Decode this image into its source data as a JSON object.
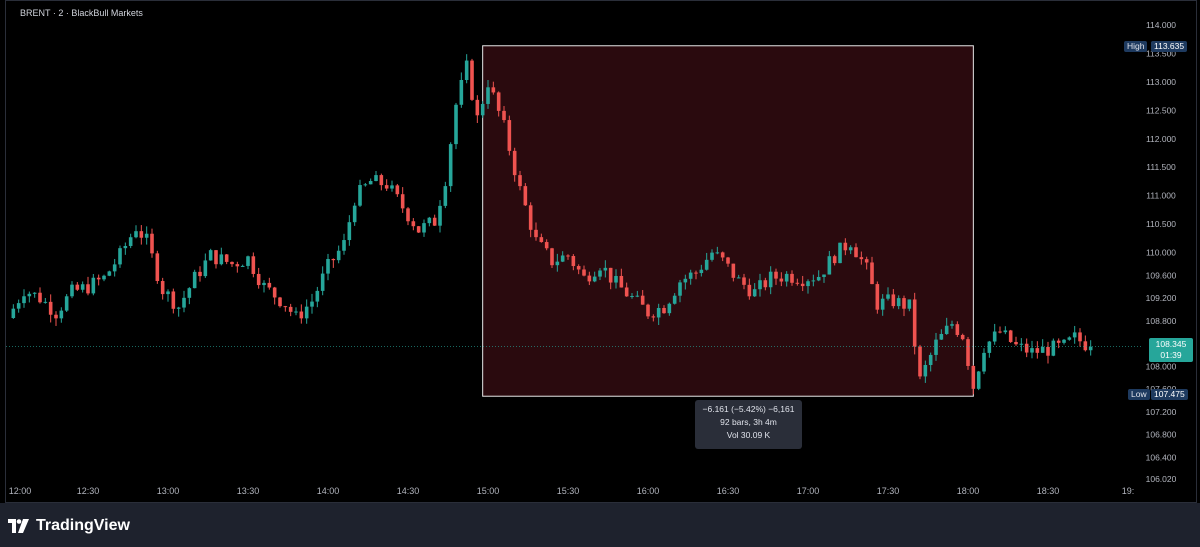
{
  "header": {
    "symbol_title": "BRENT · 2 · BlackBull Markets"
  },
  "footer": {
    "brand": "TradingView"
  },
  "price_tags": {
    "high_label": "High",
    "high_value": "113.635",
    "low_label": "Low",
    "low_value": "107.475",
    "current_value": "108.345",
    "countdown": "01:39"
  },
  "measure_tool": {
    "line1": "−6.161 (−5.42%) −6,161",
    "line2": "92 bars, 3h 4m",
    "line3": "Vol 30.09 K"
  },
  "colors": {
    "up": "#26a69a",
    "down": "#ef5350",
    "background": "#000000",
    "measure_fill": "#2a0a0e",
    "current_tag": "#26a69a",
    "high_low_tag": "#1e3a5f"
  },
  "chart_data": {
    "type": "candlestick",
    "title": "",
    "xlabel": "",
    "ylabel": "",
    "ylim": [
      106.02,
      114.1
    ],
    "y_ticks": [
      "114.000",
      "113.500",
      "113.000",
      "112.500",
      "112.000",
      "111.500",
      "111.000",
      "110.500",
      "110.000",
      "109.600",
      "109.200",
      "108.800",
      "108.000",
      "107.600",
      "107.200",
      "106.800",
      "106.400",
      "106.020"
    ],
    "x_ticks": [
      "12:00",
      "12:30",
      "13:00",
      "13:30",
      "14:00",
      "14:30",
      "15:00",
      "15:30",
      "16:00",
      "16:30",
      "17:00",
      "17:30",
      "18:00",
      "18:30",
      "19:"
    ],
    "time_range": [
      "12:00",
      "18:46"
    ],
    "bar_interval_minutes": 2,
    "close_path": [
      [
        "12:00",
        108.85
      ],
      [
        "12:06",
        109.35
      ],
      [
        "12:12",
        109.2
      ],
      [
        "12:18",
        108.95
      ],
      [
        "12:24",
        109.3
      ],
      [
        "12:30",
        109.4
      ],
      [
        "12:36",
        109.55
      ],
      [
        "12:42",
        109.95
      ],
      [
        "12:48",
        110.45
      ],
      [
        "12:52",
        110.2
      ],
      [
        "12:58",
        109.35
      ],
      [
        "13:04",
        109.05
      ],
      [
        "13:10",
        109.55
      ],
      [
        "13:16",
        109.95
      ],
      [
        "13:24",
        109.8
      ],
      [
        "13:30",
        109.9
      ],
      [
        "13:36",
        109.4
      ],
      [
        "13:44",
        109.1
      ],
      [
        "13:48",
        108.85
      ],
      [
        "13:54",
        109.15
      ],
      [
        "14:00",
        109.75
      ],
      [
        "14:06",
        110.15
      ],
      [
        "14:10",
        110.95
      ],
      [
        "14:16",
        111.25
      ],
      [
        "14:22",
        111.2
      ],
      [
        "14:28",
        110.8
      ],
      [
        "14:34",
        110.4
      ],
      [
        "14:40",
        110.55
      ],
      [
        "14:44",
        111.3
      ],
      [
        "14:48",
        112.6
      ],
      [
        "14:52",
        113.25
      ],
      [
        "14:56",
        112.35
      ],
      [
        "15:00",
        113.0
      ],
      [
        "15:06",
        112.2
      ],
      [
        "15:12",
        111.1
      ],
      [
        "15:18",
        110.2
      ],
      [
        "15:24",
        109.85
      ],
      [
        "15:30",
        109.95
      ],
      [
        "15:36",
        109.55
      ],
      [
        "15:42",
        109.8
      ],
      [
        "15:48",
        109.45
      ],
      [
        "15:54",
        109.2
      ],
      [
        "16:00",
        108.95
      ],
      [
        "16:06",
        109.05
      ],
      [
        "16:12",
        109.5
      ],
      [
        "16:18",
        109.65
      ],
      [
        "16:24",
        110.0
      ],
      [
        "16:28",
        109.85
      ],
      [
        "16:34",
        109.5
      ],
      [
        "16:40",
        109.3
      ],
      [
        "16:46",
        109.55
      ],
      [
        "16:52",
        109.6
      ],
      [
        "16:58",
        109.55
      ],
      [
        "17:04",
        109.6
      ],
      [
        "17:10",
        109.95
      ],
      [
        "17:16",
        110.2
      ],
      [
        "17:22",
        109.7
      ],
      [
        "17:26",
        109.1
      ],
      [
        "17:32",
        109.15
      ],
      [
        "17:38",
        109.05
      ],
      [
        "17:42",
        107.75
      ],
      [
        "17:48",
        108.4
      ],
      [
        "17:54",
        108.75
      ],
      [
        "17:58",
        108.55
      ],
      [
        "18:02",
        107.65
      ],
      [
        "18:06",
        108.35
      ],
      [
        "18:12",
        108.6
      ],
      [
        "18:18",
        108.35
      ],
      [
        "18:24",
        108.25
      ],
      [
        "18:30",
        108.3
      ],
      [
        "18:36",
        108.35
      ],
      [
        "18:40",
        108.5
      ],
      [
        "18:46",
        108.345
      ]
    ],
    "high": 113.635,
    "low": 107.475,
    "last": 108.345,
    "measure": {
      "from": {
        "time": "14:58",
        "price": 113.635
      },
      "to": {
        "time": "18:02",
        "price": 107.475
      },
      "change": -6.161,
      "change_percent": -5.42,
      "bars": 92,
      "duration": "3h 4m",
      "volume": "30.09 K"
    }
  }
}
